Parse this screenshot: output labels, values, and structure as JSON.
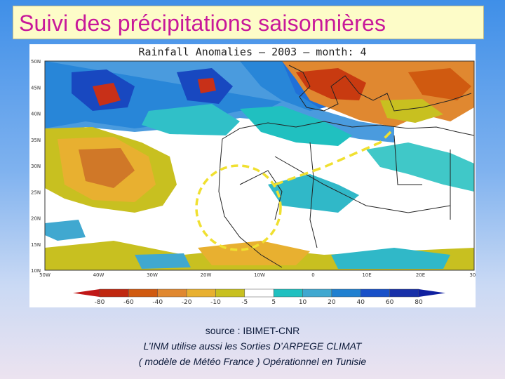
{
  "slide": {
    "title": "Suivi des précipitations saisonnières"
  },
  "map": {
    "title": "Rainfall Anomalies  –  2003  –  month: 4",
    "lat_labels": [
      "50N",
      "45N",
      "40N",
      "35N",
      "30N",
      "25N",
      "20N",
      "15N",
      "10N"
    ],
    "lon_labels": [
      "50W",
      "40W",
      "30W",
      "20W",
      "10W",
      "0",
      "10E",
      "20E",
      "30E"
    ],
    "colorbar": {
      "labels": [
        "-80",
        "-60",
        "-40",
        "-20",
        "-10",
        "-5",
        "5",
        "10",
        "20",
        "40",
        "60",
        "80"
      ],
      "colors": [
        "#c02810",
        "#d05a10",
        "#e08830",
        "#e8b030",
        "#c8c020",
        "#ffffff",
        "#20c0c0",
        "#40a8d0",
        "#2080d0",
        "#1850c8",
        "#1830a8"
      ],
      "arrow_left": "#c01818",
      "arrow_right": "#1020a0"
    },
    "annotation_color": "#f0e030"
  },
  "captions": {
    "source": "source : IBIMET-CNR",
    "line1": "L’INM utilise aussi  les Sorties D’ARPEGE CLIMAT",
    "line2": "( modèle de Météo France ) Opérationnel en Tunisie"
  }
}
